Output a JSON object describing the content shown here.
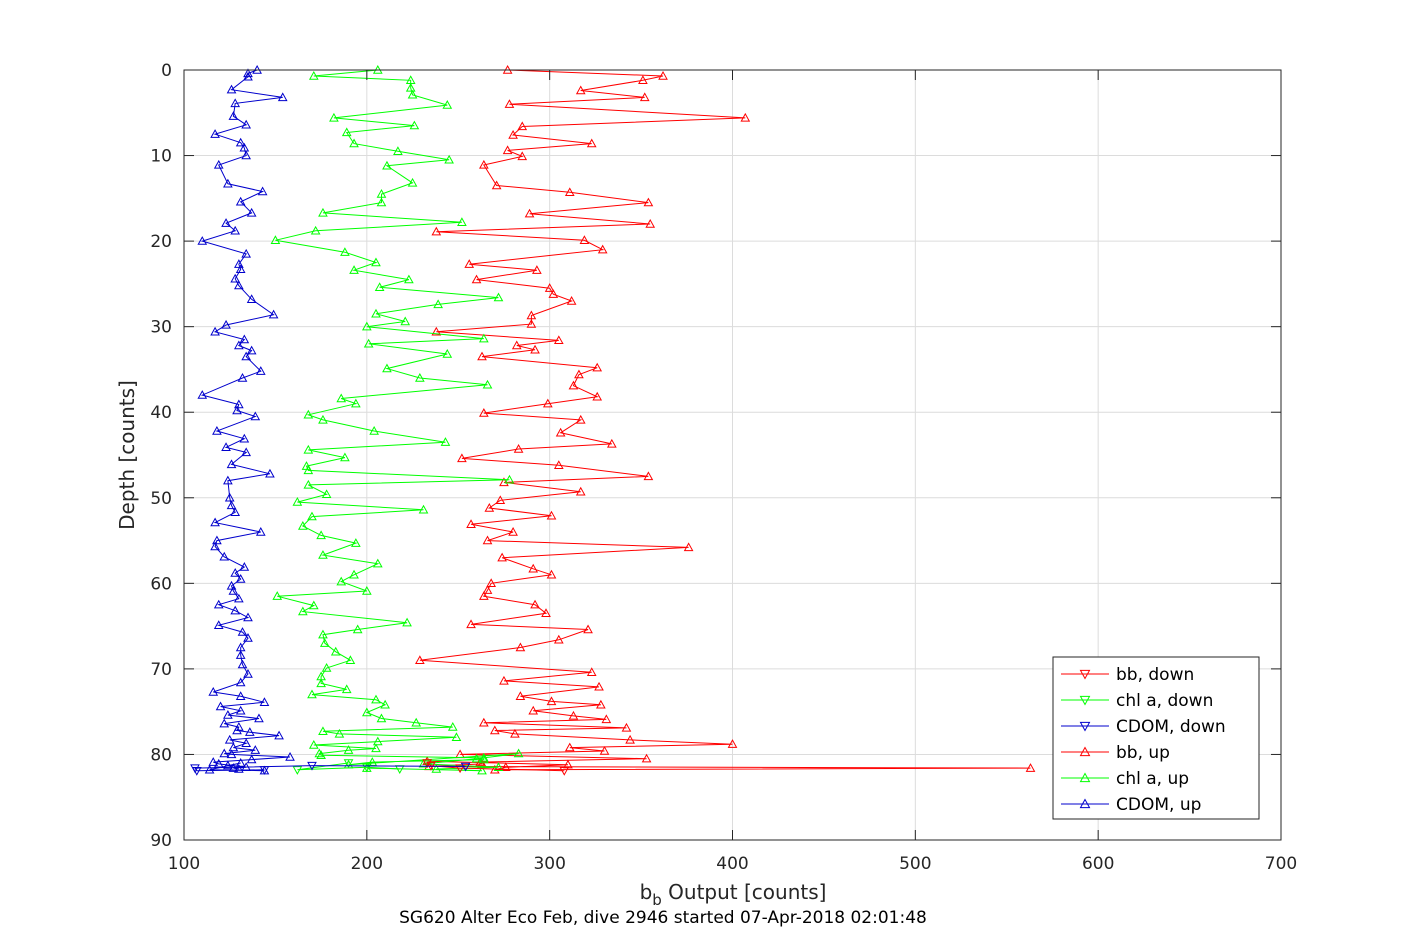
{
  "chart_data": {
    "type": "line",
    "title": "SG620 Alter Eco Feb, dive 2946 started 07-Apr-2018 02:01:48",
    "xlabel_main": "b",
    "xlabel_sub": "b",
    "xlabel_rest": " Output [counts]",
    "ylabel": "Depth [counts]",
    "xlim": [
      100,
      700
    ],
    "ylim": [
      0,
      90
    ],
    "y_reversed": true,
    "xticks": [
      100,
      200,
      300,
      400,
      500,
      600,
      700
    ],
    "yticks": [
      0,
      10,
      20,
      30,
      40,
      50,
      60,
      70,
      80,
      90
    ],
    "grid": true,
    "legend_position": "bottom-right",
    "series": [
      {
        "name": "bb, down",
        "color": "#ff0000",
        "marker": "down",
        "x": [
          233,
          235,
          251,
          308
        ],
        "y": [
          81.0,
          81.3,
          81.6,
          81.9
        ]
      },
      {
        "name": "chl a, down",
        "color": "#00ff00",
        "marker": "down",
        "x": [
          190,
          162,
          200,
          218
        ],
        "y": [
          81.0,
          81.8,
          81.5,
          81.7
        ]
      },
      {
        "name": "CDOM, down",
        "color": "#0000cc",
        "marker": "down",
        "x": [
          144,
          107,
          106,
          170,
          254
        ],
        "y": [
          81.8,
          81.9,
          81.6,
          81.3,
          81.4
        ]
      },
      {
        "name": "bb, up",
        "color": "#ff0000",
        "marker": "up",
        "x": [
          277,
          362,
          351,
          317,
          352,
          278,
          407,
          285,
          280,
          323,
          277,
          285,
          264,
          271,
          311,
          354,
          289,
          355,
          238,
          319,
          329,
          256,
          293,
          260,
          300,
          302,
          312,
          290,
          290,
          238,
          305,
          282,
          292,
          263,
          326,
          316,
          313,
          326,
          299,
          264,
          317,
          306,
          334,
          283,
          252,
          305,
          354,
          275,
          317,
          273,
          267,
          301,
          257,
          280,
          266,
          376,
          274,
          291,
          301,
          268,
          266,
          264,
          292,
          298,
          257,
          321,
          305,
          284,
          229,
          323,
          275,
          327,
          284,
          301,
          328,
          291,
          313,
          331,
          264,
          342,
          270,
          281,
          344,
          400,
          311,
          330,
          251,
          353,
          262,
          263,
          234,
          563,
          270,
          276,
          310,
          233
        ],
        "y": [
          0.0,
          0.7,
          1.2,
          2.4,
          3.2,
          4.0,
          5.6,
          6.6,
          7.6,
          8.6,
          9.4,
          10.1,
          11.1,
          13.5,
          14.3,
          15.5,
          16.8,
          18.0,
          18.9,
          19.9,
          21.0,
          22.7,
          23.4,
          24.5,
          25.5,
          26.2,
          27.0,
          28.7,
          29.7,
          30.6,
          31.6,
          32.2,
          32.7,
          33.5,
          34.8,
          35.6,
          36.9,
          38.2,
          39.0,
          40.1,
          40.9,
          42.4,
          43.7,
          44.3,
          45.4,
          46.2,
          47.5,
          48.2,
          49.3,
          50.3,
          51.2,
          52.1,
          53.1,
          54.0,
          55.0,
          55.8,
          57.0,
          58.3,
          59.0,
          60.0,
          60.8,
          61.5,
          62.5,
          63.5,
          64.8,
          65.4,
          66.6,
          67.5,
          69.0,
          70.4,
          71.4,
          72.1,
          73.2,
          73.8,
          74.2,
          74.9,
          75.5,
          75.9,
          76.3,
          76.9,
          77.2,
          77.6,
          78.3,
          78.8,
          79.2,
          79.6,
          80.0,
          80.5,
          80.9,
          81.1,
          81.4,
          81.6,
          81.8,
          81.5,
          81.2,
          80.8
        ]
      },
      {
        "name": "chl a, up",
        "color": "#00ff00",
        "marker": "up",
        "x": [
          206,
          171,
          224,
          224,
          225,
          244,
          182,
          226,
          189,
          193,
          217,
          245,
          211,
          225,
          208,
          208,
          176,
          252,
          172,
          150,
          188,
          205,
          193,
          223,
          207,
          272,
          239,
          205,
          221,
          200,
          264,
          201,
          244,
          211,
          229,
          266,
          186,
          194,
          168,
          176,
          204,
          243,
          168,
          188,
          167,
          168,
          278,
          168,
          178,
          162,
          231,
          170,
          165,
          175,
          194,
          176,
          206,
          193,
          186,
          200,
          151,
          171,
          165,
          222,
          195,
          176,
          177,
          183,
          191,
          178,
          175,
          175,
          189,
          170,
          205,
          210,
          200,
          208,
          227,
          247,
          176,
          185,
          249,
          206,
          171,
          205,
          190,
          174,
          175,
          264,
          264,
          203,
          190,
          283,
          260,
          231,
          272,
          238,
          263,
          200
        ],
        "y": [
          0.0,
          0.7,
          1.2,
          2.1,
          2.9,
          4.1,
          5.6,
          6.5,
          7.3,
          8.6,
          9.5,
          10.5,
          11.2,
          13.2,
          14.5,
          15.5,
          16.7,
          17.8,
          18.8,
          19.9,
          21.3,
          22.5,
          23.4,
          24.5,
          25.4,
          26.6,
          27.4,
          28.5,
          29.4,
          30.0,
          31.4,
          32.0,
          33.2,
          34.9,
          36.0,
          36.8,
          38.4,
          39.0,
          40.3,
          40.9,
          42.2,
          43.5,
          44.4,
          45.3,
          46.3,
          46.8,
          47.9,
          48.5,
          49.6,
          50.5,
          51.4,
          52.2,
          53.3,
          54.4,
          55.3,
          56.7,
          57.7,
          59.0,
          59.8,
          60.9,
          61.5,
          62.6,
          63.3,
          64.6,
          65.4,
          66.0,
          67.0,
          68.0,
          69.0,
          69.9,
          70.9,
          71.7,
          72.4,
          73.0,
          73.6,
          74.2,
          75.1,
          75.8,
          76.3,
          76.8,
          77.3,
          77.6,
          78.0,
          78.5,
          78.9,
          79.3,
          79.5,
          79.9,
          80.1,
          80.4,
          80.6,
          80.9,
          81.2,
          79.9,
          80.5,
          81.1,
          81.5,
          81.7,
          81.9,
          81.6
        ]
      },
      {
        "name": "CDOM, up",
        "color": "#0000cc",
        "marker": "up",
        "x": [
          140,
          135,
          135,
          126,
          154,
          128,
          127,
          134,
          117,
          131,
          133,
          134,
          119,
          124,
          143,
          131,
          137,
          123,
          128,
          110,
          134,
          130,
          131,
          128,
          130,
          137,
          149,
          123,
          117,
          133,
          130,
          137,
          134,
          142,
          132,
          110,
          130,
          129,
          139,
          118,
          133,
          123,
          134,
          126,
          147,
          124,
          125,
          126,
          128,
          117,
          142,
          118,
          117,
          122,
          133,
          128,
          131,
          126,
          127,
          130,
          119,
          128,
          135,
          119,
          132,
          135,
          131,
          131,
          132,
          135,
          131,
          116,
          131,
          144,
          120,
          131,
          124,
          141,
          122,
          130,
          129,
          136,
          152,
          125,
          134,
          127,
          139,
          122,
          126,
          158,
          137,
          116,
          119,
          134,
          127,
          130,
          124,
          131,
          114,
          144
        ],
        "y": [
          0.0,
          0.4,
          0.8,
          2.3,
          3.2,
          3.9,
          5.4,
          6.4,
          7.5,
          8.5,
          9.1,
          10.0,
          11.1,
          13.3,
          14.2,
          15.4,
          16.7,
          17.9,
          18.8,
          20.0,
          21.5,
          22.7,
          23.3,
          24.4,
          25.2,
          26.8,
          28.6,
          29.8,
          30.6,
          31.5,
          32.2,
          32.8,
          33.5,
          35.2,
          36.0,
          38.0,
          39.1,
          39.8,
          40.5,
          42.2,
          43.1,
          44.1,
          44.7,
          46.1,
          47.2,
          48.0,
          50.0,
          50.9,
          51.7,
          52.9,
          54.0,
          55.0,
          55.7,
          56.9,
          58.1,
          58.8,
          59.5,
          60.3,
          60.9,
          61.8,
          62.5,
          63.2,
          64.0,
          64.9,
          65.7,
          66.4,
          67.5,
          68.4,
          69.5,
          70.6,
          71.6,
          72.7,
          73.2,
          73.9,
          74.4,
          74.9,
          75.4,
          75.8,
          76.4,
          76.8,
          77.2,
          77.4,
          77.8,
          78.3,
          78.7,
          79.2,
          79.5,
          79.9,
          80.0,
          80.3,
          80.6,
          80.9,
          81.1,
          81.5,
          81.6,
          81.7,
          81.3,
          81.0,
          81.8,
          81.9
        ]
      }
    ]
  }
}
